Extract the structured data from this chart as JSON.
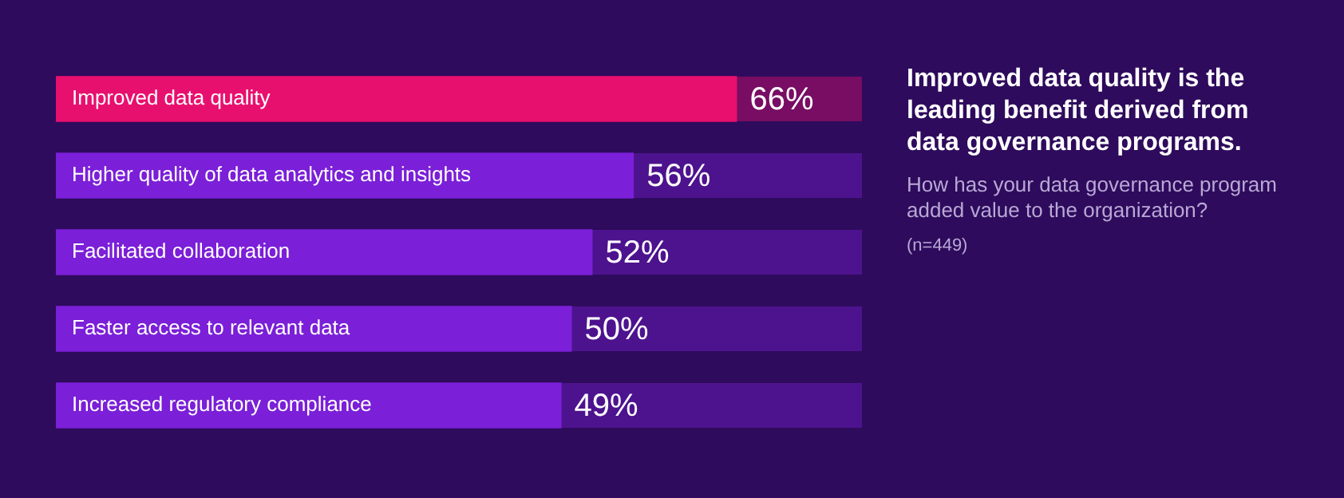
{
  "chart_data": {
    "type": "bar",
    "orientation": "horizontal",
    "title": "Improved data quality is the leading benefit derived from data governance programs.",
    "subtitle": "How has your data governance program added value to the organization?",
    "annotations": [
      "(n=449)"
    ],
    "categories": [
      "Improved data quality",
      "Higher quality of data analytics and insights",
      "Facilitated collaboration",
      "Faster access to relevant data",
      "Increased regulatory compliance"
    ],
    "values": [
      66,
      56,
      52,
      50,
      49
    ],
    "colors": [
      "#e8106e",
      "#7b1fd8",
      "#7b1fd8",
      "#7b1fd8",
      "#7b1fd8"
    ],
    "value_labels": [
      "66%",
      "56%",
      "52%",
      "50%",
      "49%"
    ]
  }
}
